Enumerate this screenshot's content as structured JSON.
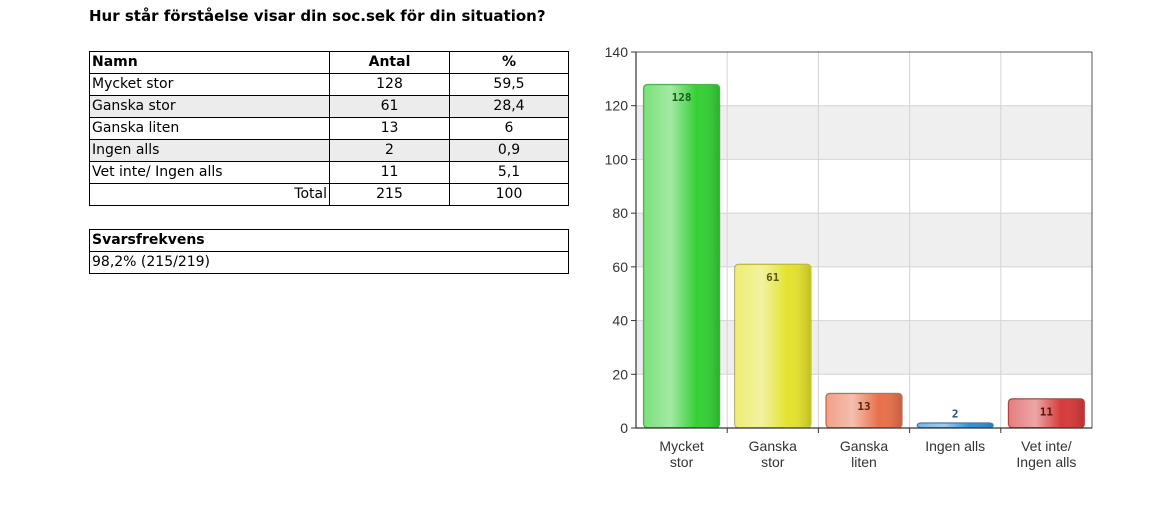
{
  "title": "Hur står förståelse visar din soc.sek för din situation?",
  "table": {
    "headers": {
      "name": "Namn",
      "count": "Antal",
      "percent": "%"
    },
    "rows": [
      {
        "name": "Mycket stor",
        "count": "128",
        "percent": "59,5"
      },
      {
        "name": "Ganska stor",
        "count": "61",
        "percent": "28,4"
      },
      {
        "name": "Ganska liten",
        "count": "13",
        "percent": "6"
      },
      {
        "name": "Ingen alls",
        "count": "2",
        "percent": "0,9"
      },
      {
        "name": "Vet inte/ Ingen alls",
        "count": "11",
        "percent": "5,1"
      }
    ],
    "total": {
      "label": "Total",
      "count": "215",
      "percent": "100"
    }
  },
  "response_rate": {
    "header": "Svarsfrekvens",
    "value": "98,2% (215/219)"
  },
  "chart_data": {
    "type": "bar",
    "categories": [
      [
        "Mycket",
        "stor"
      ],
      [
        "Ganska",
        "stor"
      ],
      [
        "Ganska",
        "liten"
      ],
      [
        "Ingen alls"
      ],
      [
        "Vet inte/",
        "Ingen alls"
      ]
    ],
    "values": [
      128,
      61,
      13,
      2,
      11
    ],
    "ylim": [
      0,
      140
    ],
    "yticks": [
      0,
      20,
      40,
      60,
      80,
      100,
      120,
      140
    ],
    "grid": true,
    "colors": [
      "#35d035",
      "#e3e32e",
      "#e8704a",
      "#2f8fd8",
      "#d63a3a"
    ],
    "label_colors": [
      "#1d5a1d",
      "#5a5a10",
      "#5a2410",
      "#1d4a7a",
      "#5a1010"
    ]
  }
}
